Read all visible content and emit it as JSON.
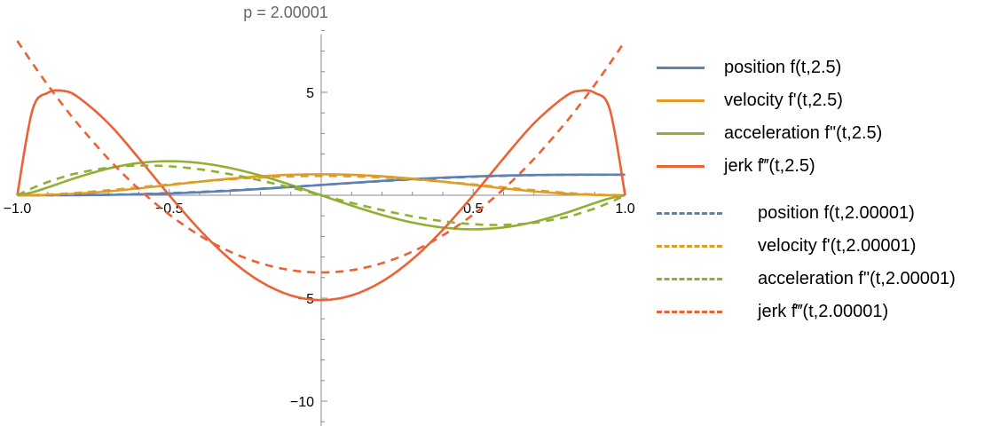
{
  "chart_data": {
    "type": "line",
    "title": "p = 2.00001",
    "xlabel": "",
    "ylabel": "",
    "xlim": [
      -1,
      1
    ],
    "ylim": [
      -11,
      8
    ],
    "x_ticks": [
      "-1.0",
      "-0.5",
      "0.5",
      "1.0"
    ],
    "y_ticks": [
      "5",
      "-5",
      "-10"
    ],
    "x_tick_values": [
      -1,
      -0.5,
      0.5,
      1
    ],
    "y_tick_values": [
      5,
      -5,
      -10
    ],
    "grid": false,
    "legend_placement": "right",
    "x": [
      -1,
      -0.95,
      -0.9,
      -0.85,
      -0.8,
      -0.7,
      -0.6,
      -0.5,
      -0.4,
      -0.3,
      -0.2,
      -0.1,
      0,
      0.1,
      0.2,
      0.3,
      0.4,
      0.5,
      0.6,
      0.7,
      0.8,
      0.85,
      0.9,
      0.95,
      1
    ],
    "series": [
      {
        "name": "position f(t,2.5)",
        "color": "#5E81B5",
        "dashed": false,
        "values": [
          0,
          0.0,
          0.0005,
          0.0018,
          0.0048,
          0.0179,
          0.0438,
          0.0852,
          0.143,
          0.2164,
          0.3029,
          0.399,
          0.5,
          0.601,
          0.6971,
          0.7836,
          0.857,
          0.9148,
          0.9562,
          0.9821,
          0.9952,
          0.9982,
          0.9995,
          1.0,
          1
        ]
      },
      {
        "name": "velocity f'(t,2.5)",
        "color": "#E19C24",
        "dashed": false,
        "values": [
          0,
          0.003,
          0.016,
          0.0413,
          0.0792,
          0.1892,
          0.3338,
          0.4962,
          0.6587,
          0.8047,
          0.9198,
          0.9933,
          1.0186,
          0.9933,
          0.9198,
          0.8047,
          0.6587,
          0.4962,
          0.3338,
          0.1892,
          0.0792,
          0.0413,
          0.016,
          0.003,
          0
        ]
      },
      {
        "name": "acceleration f''(t,2.5)",
        "color": "#8FB032",
        "dashed": false,
        "values": [
          0,
          0.1473,
          0.3796,
          0.6328,
          0.8801,
          1.2985,
          1.5646,
          1.654,
          1.5684,
          1.3264,
          0.9581,
          0.5017,
          0,
          -0.5017,
          -0.9581,
          -1.3264,
          -1.5684,
          -1.654,
          -1.5646,
          -1.2985,
          -0.8801,
          -0.6328,
          -0.3796,
          -0.1473,
          0
        ]
      },
      {
        "name": "jerk f'''(t,2.5)",
        "color": "#EB6235",
        "dashed": false,
        "values": [
          0,
          4.151,
          4.973,
          5.071,
          4.767,
          3.492,
          1.793,
          0,
          -1.68,
          -3.109,
          -4.192,
          -4.865,
          -5.093,
          -4.865,
          -4.192,
          -3.109,
          -1.68,
          0,
          1.793,
          3.492,
          4.767,
          5.071,
          4.973,
          4.151,
          0
        ]
      },
      {
        "name": "position f(t,2.00001)",
        "color": "#5E81B5",
        "dashed": true,
        "values": [
          0,
          0.0002,
          0.0012,
          0.0038,
          0.0086,
          0.0266,
          0.0579,
          0.1035,
          0.1631,
          0.2352,
          0.3174,
          0.4069,
          0.5,
          0.5931,
          0.6826,
          0.7648,
          0.8369,
          0.8965,
          0.9421,
          0.9734,
          0.9914,
          0.9962,
          0.9988,
          0.9998,
          1
        ]
      },
      {
        "name": "velocity f'(t,2.00001)",
        "color": "#E19C24",
        "dashed": true,
        "values": [
          0,
          0.0089,
          0.0338,
          0.0722,
          0.1215,
          0.2438,
          0.384,
          0.5273,
          0.6615,
          0.7763,
          0.864,
          0.9188,
          0.9375,
          0.9188,
          0.864,
          0.7763,
          0.6615,
          0.5273,
          0.384,
          0.2438,
          0.1215,
          0.0722,
          0.0338,
          0.0089,
          0
        ]
      },
      {
        "name": "acceleration f''(t,2.00001)",
        "color": "#8FB032",
        "dashed": true,
        "values": [
          0,
          0.3473,
          0.641,
          0.8845,
          1.08,
          1.339,
          1.44,
          1.406,
          1.26,
          1.024,
          0.72,
          0.371,
          0,
          -0.371,
          -0.72,
          -1.024,
          -1.26,
          -1.406,
          -1.44,
          -1.339,
          -1.08,
          -0.8845,
          -0.641,
          -0.3473,
          0
        ]
      },
      {
        "name": "jerk f'''(t,2.00001)",
        "color": "#EB6235",
        "dashed": true,
        "values": [
          7.5,
          6.403,
          5.363,
          4.378,
          3.45,
          1.763,
          0.3,
          -0.938,
          -1.95,
          -2.738,
          -3.3,
          -3.638,
          -3.75,
          -3.638,
          -3.3,
          -2.738,
          -1.95,
          -0.938,
          0.3,
          1.763,
          3.45,
          4.378,
          5.363,
          6.403,
          7.5
        ]
      }
    ]
  }
}
